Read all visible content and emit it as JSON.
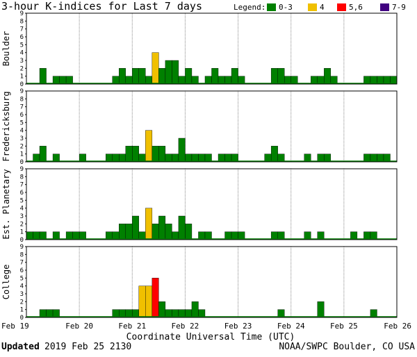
{
  "title": "3-hour K-indices for Last 7 days",
  "legend": {
    "label": "Legend:",
    "items": [
      {
        "label": "0-3",
        "color": "#008000"
      },
      {
        "label": "4",
        "color": "#f0c000"
      },
      {
        "label": "5,6",
        "color": "#ff0000"
      },
      {
        "label": "7-9",
        "color": "#400080"
      }
    ]
  },
  "xlabel": "Coordinate Universal Time (UTC)",
  "footer": {
    "updated_label": "Updated",
    "updated_value": "2019 Feb 25 2130",
    "credit": "NOAA/SWPC Boulder, CO USA"
  },
  "chart_data": {
    "type": "bar",
    "x_ticks": [
      "Feb 19",
      "Feb 20",
      "Feb 21",
      "Feb 22",
      "Feb 23",
      "Feb 24",
      "Feb 25",
      "Feb 26"
    ],
    "y_ticks": [
      "0",
      "1",
      "2",
      "3",
      "4",
      "5",
      "6",
      "7",
      "8",
      "9"
    ],
    "ylim": [
      0,
      9
    ],
    "bins_per_day": 8,
    "series": [
      {
        "name": "Boulder",
        "values": [
          0,
          0,
          2,
          0,
          1,
          1,
          1,
          0,
          0,
          0,
          0,
          0,
          0,
          1,
          2,
          1,
          2,
          2,
          1,
          4,
          2,
          3,
          3,
          1,
          2,
          1,
          0,
          1,
          2,
          1,
          1,
          2,
          1,
          0,
          0,
          0,
          0,
          2,
          2,
          1,
          1,
          0,
          0,
          1,
          1,
          2,
          1,
          0,
          0,
          0,
          0,
          1,
          1,
          1,
          1,
          1,
          0
        ]
      },
      {
        "name": "Fredericksburg",
        "values": [
          0,
          1,
          2,
          0,
          1,
          0,
          0,
          0,
          1,
          0,
          0,
          0,
          1,
          1,
          1,
          2,
          2,
          1,
          4,
          2,
          2,
          1,
          1,
          3,
          1,
          1,
          1,
          1,
          0,
          1,
          1,
          1,
          0,
          0,
          0,
          0,
          1,
          2,
          1,
          0,
          0,
          0,
          1,
          0,
          1,
          1,
          0,
          0,
          0,
          0,
          0,
          1,
          1,
          1,
          1,
          0,
          0
        ]
      },
      {
        "name": "Est. Planetary",
        "values": [
          1,
          1,
          1,
          0,
          1,
          0,
          1,
          1,
          1,
          0,
          0,
          0,
          1,
          1,
          2,
          2,
          3,
          1,
          4,
          2,
          3,
          2,
          1,
          3,
          2,
          0,
          1,
          1,
          0,
          0,
          1,
          1,
          1,
          0,
          0,
          0,
          0,
          1,
          1,
          0,
          0,
          0,
          1,
          0,
          1,
          0,
          0,
          0,
          0,
          1,
          0,
          1,
          1,
          0,
          0,
          0,
          0
        ]
      },
      {
        "name": "College",
        "values": [
          0,
          0,
          1,
          1,
          1,
          0,
          0,
          0,
          0,
          0,
          0,
          0,
          0,
          1,
          1,
          1,
          1,
          4,
          4,
          5,
          2,
          1,
          1,
          1,
          1,
          2,
          1,
          0,
          0,
          0,
          0,
          0,
          0,
          0,
          0,
          0,
          0,
          0,
          1,
          0,
          0,
          0,
          0,
          0,
          2,
          0,
          0,
          0,
          0,
          0,
          0,
          0,
          1,
          0,
          0,
          0,
          0
        ]
      }
    ]
  }
}
